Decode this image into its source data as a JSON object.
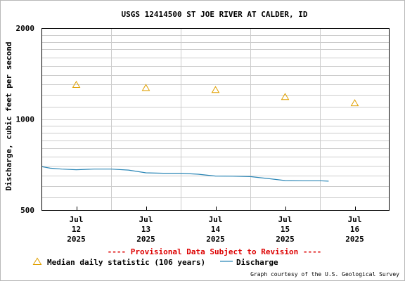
{
  "chart_data": {
    "type": "line",
    "title": "USGS 12414500 ST JOE RIVER AT CALDER, ID",
    "xlabel": "",
    "ylabel": "Discharge, cubic feet per second",
    "y_scale": "log",
    "ylim": [
      500,
      2000
    ],
    "yticks": [
      500,
      1000,
      2000
    ],
    "y_minor_ticks": [
      550,
      600,
      650,
      700,
      750,
      800,
      850,
      900,
      950,
      1100,
      1200,
      1300,
      1400,
      1500,
      1600,
      1700,
      1800,
      1900
    ],
    "grid": true,
    "xlim": [
      "2025-07-11T12:00",
      "2025-07-16T12:00"
    ],
    "x_ticks": [
      {
        "x": "2025-07-12T00:00",
        "label": [
          "Jul",
          "12",
          "2025"
        ]
      },
      {
        "x": "2025-07-13T00:00",
        "label": [
          "Jul",
          "13",
          "2025"
        ]
      },
      {
        "x": "2025-07-14T00:00",
        "label": [
          "Jul",
          "14",
          "2025"
        ]
      },
      {
        "x": "2025-07-15T00:00",
        "label": [
          "Jul",
          "15",
          "2025"
        ]
      },
      {
        "x": "2025-07-16T00:00",
        "label": [
          "Jul",
          "16",
          "2025"
        ]
      }
    ],
    "x_day_gridlines": [
      "2025-07-12T12:00",
      "2025-07-13T12:00",
      "2025-07-14T12:00",
      "2025-07-15T12:00"
    ],
    "series": [
      {
        "name": "Discharge",
        "kind": "line",
        "color": "#2a86b6",
        "points": [
          {
            "x": "2025-07-11T12:00",
            "y": 696
          },
          {
            "x": "2025-07-11T15:00",
            "y": 688
          },
          {
            "x": "2025-07-11T19:00",
            "y": 683
          },
          {
            "x": "2025-07-12T00:00",
            "y": 680
          },
          {
            "x": "2025-07-12T06:00",
            "y": 683
          },
          {
            "x": "2025-07-12T12:00",
            "y": 683
          },
          {
            "x": "2025-07-12T18:00",
            "y": 678
          },
          {
            "x": "2025-07-13T00:00",
            "y": 664
          },
          {
            "x": "2025-07-13T06:00",
            "y": 662
          },
          {
            "x": "2025-07-13T12:00",
            "y": 662
          },
          {
            "x": "2025-07-13T18:00",
            "y": 657
          },
          {
            "x": "2025-07-14T00:00",
            "y": 648
          },
          {
            "x": "2025-07-14T06:00",
            "y": 647
          },
          {
            "x": "2025-07-14T12:00",
            "y": 645
          },
          {
            "x": "2025-07-14T18:00",
            "y": 636
          },
          {
            "x": "2025-07-15T00:00",
            "y": 626
          },
          {
            "x": "2025-07-15T06:00",
            "y": 625
          },
          {
            "x": "2025-07-15T12:00",
            "y": 625
          },
          {
            "x": "2025-07-15T15:00",
            "y": 623
          }
        ]
      },
      {
        "name": "Median daily statistic (106 years)",
        "kind": "marker",
        "marker": "triangle",
        "color": "#e0a000",
        "points": [
          {
            "x": "2025-07-12T00:00",
            "y": 1300
          },
          {
            "x": "2025-07-13T00:00",
            "y": 1270
          },
          {
            "x": "2025-07-14T00:00",
            "y": 1250
          },
          {
            "x": "2025-07-15T00:00",
            "y": 1185
          },
          {
            "x": "2025-07-16T00:00",
            "y": 1130
          }
        ]
      }
    ],
    "legend_placement": "bottom",
    "annotations": {
      "provisional": "---- Provisional Data Subject to Revision ----",
      "provisional_color": "#dd0000",
      "credit": "Graph courtesy of the U.S. Geological Survey"
    }
  }
}
